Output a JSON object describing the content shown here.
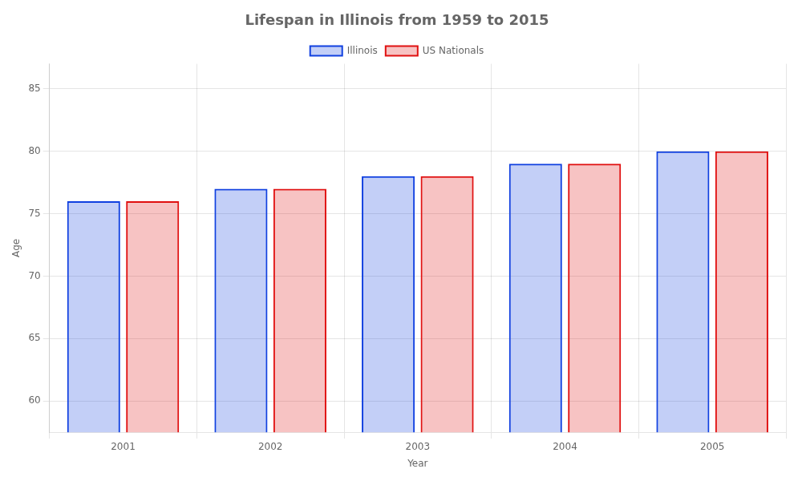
{
  "chart_data": {
    "type": "bar",
    "title": "Lifespan in Illinois from 1959 to 2015",
    "x_label": "Year",
    "y_label": "Age",
    "categories": [
      "2001",
      "2002",
      "2003",
      "2004",
      "2005"
    ],
    "series": [
      {
        "name": "Illinois",
        "color": "#1040e0",
        "values": [
          76,
          77,
          78,
          79,
          80
        ]
      },
      {
        "name": "US Nationals",
        "color": "#e01010",
        "values": [
          76,
          77,
          78,
          79,
          80
        ]
      }
    ],
    "ylim": [
      57.5,
      87
    ],
    "yticks": [
      60,
      65,
      70,
      75,
      80,
      85
    ],
    "grid": true,
    "legend": "top"
  }
}
